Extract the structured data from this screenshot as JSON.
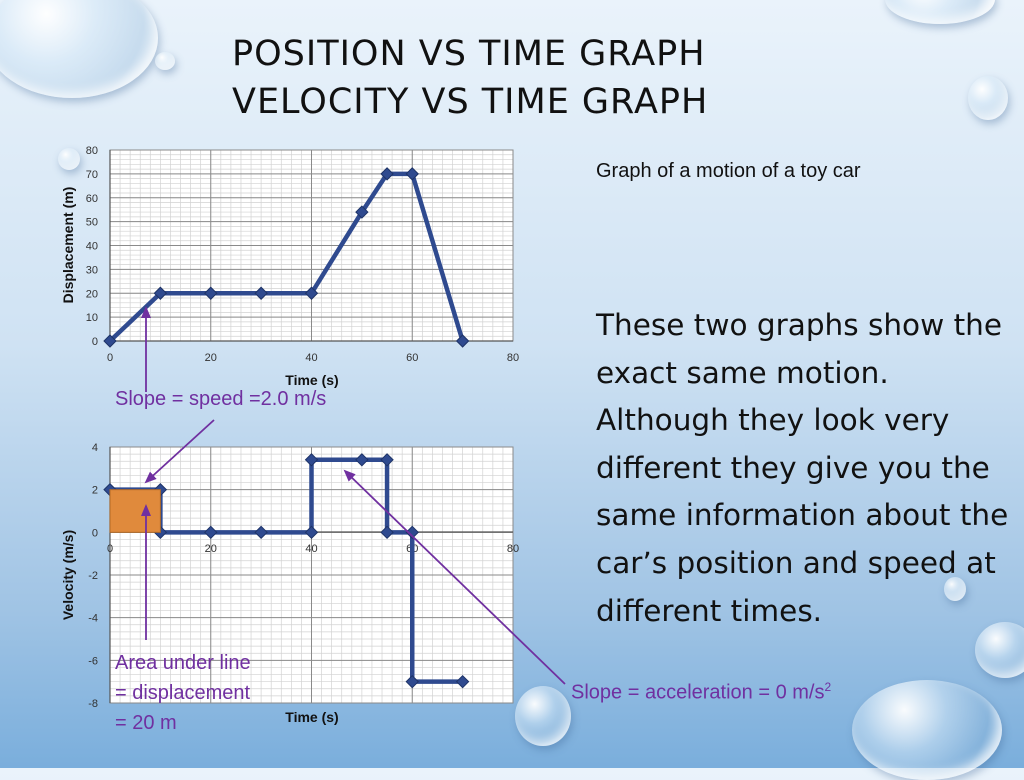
{
  "slide": {
    "title_line1": "POSITION VS TIME GRAPH",
    "title_line2": "VELOCITY VS TIME GRAPH",
    "subtitle": "Graph of a motion of a toy car",
    "body": "These two graphs show the exact same motion. Although they look very different they give you the same information about the car’s position and speed at different times."
  },
  "annotations": {
    "slope_speed": "Slope =  speed =2.0 m/s",
    "area_line1": "Area under line",
    "area_line2": "= displacement",
    "area_line3": "= 20 m",
    "slope_accel": "Slope = acceleration = 0 m/s",
    "slope_accel_sup": "2"
  },
  "colors": {
    "line": "#2f4a8f",
    "marker": "#2f4a8f",
    "annotation": "#7030a0",
    "area_fill": "#e08a3c"
  },
  "chart_data": [
    {
      "type": "line",
      "xlabel": "Time (s)",
      "ylabel": "Displacement (m)",
      "xlim": [
        0,
        80
      ],
      "ylim": [
        0,
        80
      ],
      "xticks": [
        0,
        20,
        40,
        60,
        80
      ],
      "yticks": [
        0,
        10,
        20,
        30,
        40,
        50,
        60,
        70,
        80
      ],
      "grid": true,
      "series": [
        {
          "x": [
            0,
            10,
            20,
            30,
            40,
            50,
            55,
            60,
            70
          ],
          "y": [
            0,
            20,
            20,
            20,
            20,
            54,
            70,
            70,
            0
          ]
        }
      ]
    },
    {
      "type": "line",
      "xlabel": "Time (s)",
      "ylabel": "Velocity (m/s)",
      "xlim": [
        0,
        80
      ],
      "ylim": [
        -8,
        4
      ],
      "xticks": [
        0,
        20,
        40,
        60,
        80
      ],
      "yticks": [
        -8,
        -6,
        -4,
        -2,
        0,
        2,
        4
      ],
      "grid": true,
      "series": [
        {
          "x": [
            0,
            10,
            10,
            20,
            30,
            40,
            40,
            50,
            55,
            55,
            60,
            60,
            70
          ],
          "y": [
            2,
            2,
            0,
            0,
            0,
            0,
            3.4,
            3.4,
            3.4,
            0,
            0,
            -7,
            -7
          ]
        }
      ]
    }
  ]
}
